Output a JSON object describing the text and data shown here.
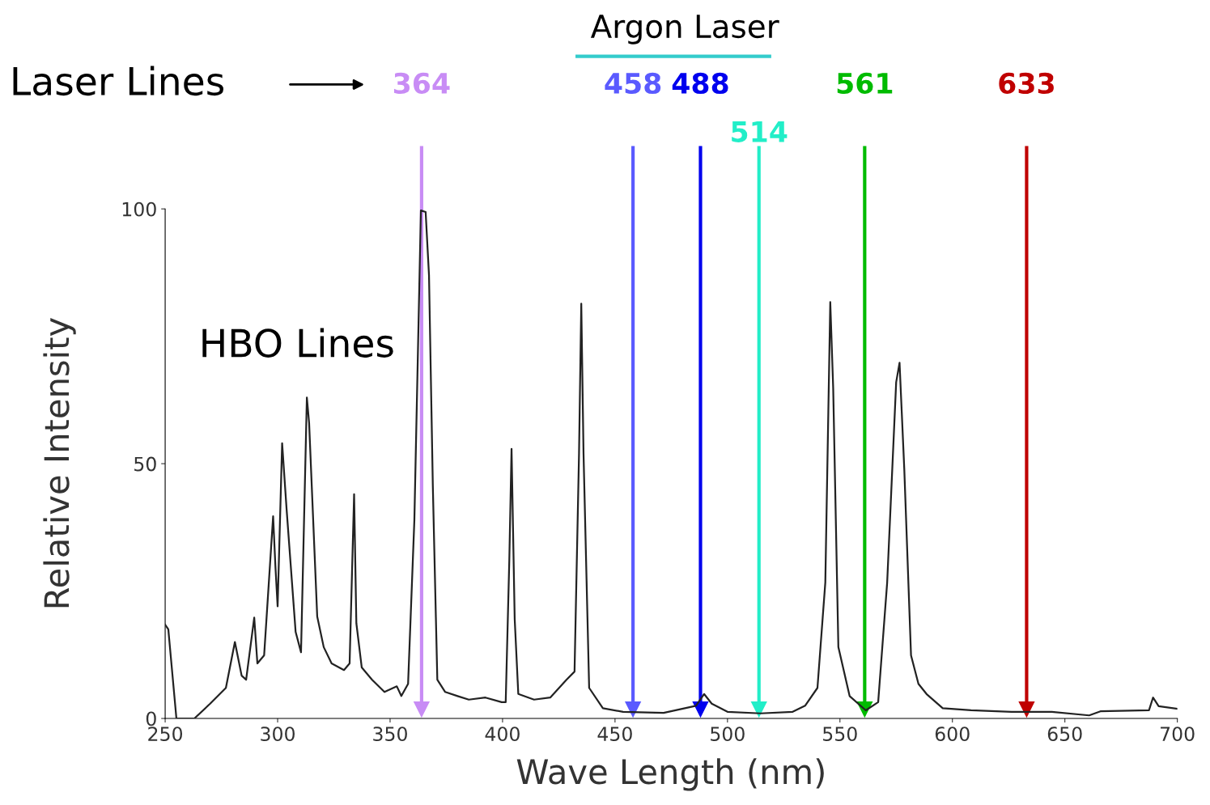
{
  "chart_data": {
    "type": "line",
    "xlabel": "Wave Length (nm)",
    "ylabel": "Relative Intensity",
    "xlim": [
      250,
      700
    ],
    "ylim": [
      0,
      100
    ],
    "xticks": [
      250,
      300,
      350,
      400,
      450,
      500,
      550,
      600,
      650,
      700
    ],
    "yticks": [
      0,
      50,
      100
    ],
    "grid": false,
    "legend": false,
    "series": [
      {
        "color": "#222222",
        "x": [
          250,
          251.4,
          255,
          263,
          270,
          277,
          281,
          284,
          286,
          289.6,
          291,
          294,
          298,
          299,
          300,
          302,
          304,
          308,
          310.4,
          313,
          314,
          317.6,
          320.5,
          324,
          329.5,
          332,
          334,
          335,
          337.4,
          342,
          347.5,
          353,
          355,
          358,
          360.8,
          363.7,
          365.8,
          367.3,
          369,
          371,
          374.5,
          380,
          385,
          392.4,
          399.6,
          401.4,
          403,
          404,
          405.4,
          407,
          414,
          421.2,
          428.4,
          432,
          434,
          435,
          436,
          438.5,
          444.6,
          453.6,
          471.6,
          486,
          489.6,
          493,
          500,
          514.7,
          529,
          534.5,
          540,
          543.5,
          545.7,
          547,
          549.3,
          554.3,
          561.5,
          567,
          571,
          575,
          576.5,
          578.6,
          581.6,
          584.9,
          588.5,
          595.7,
          608.3,
          626.3,
          644.2,
          660.8,
          665.8,
          687.4,
          689.2,
          691.7,
          700
        ],
        "values": [
          18.4,
          17.5,
          0,
          0,
          2.9,
          6,
          15,
          8.4,
          7.6,
          19.8,
          10.8,
          12.4,
          39.7,
          30,
          22,
          54,
          41,
          17,
          13,
          63,
          58,
          20,
          14,
          10.8,
          9.5,
          10.8,
          44,
          18.7,
          10,
          7.6,
          5.2,
          6.3,
          4.4,
          6.8,
          39,
          99.7,
          99.4,
          87,
          45.7,
          7.6,
          5.2,
          4.4,
          3.7,
          4.1,
          3.2,
          3.2,
          31,
          52.9,
          19.5,
          4.8,
          3.7,
          4.1,
          7.6,
          9.2,
          52,
          81.4,
          52,
          6,
          2,
          1.3,
          1.1,
          2.5,
          4.8,
          2.9,
          1.3,
          1,
          1.3,
          2.5,
          6,
          26.7,
          81.7,
          64.8,
          14,
          4.4,
          1.6,
          3.2,
          26.7,
          66,
          69.8,
          49,
          12.4,
          6.8,
          4.8,
          2,
          1.6,
          1.3,
          1.3,
          0.6,
          1.4,
          1.6,
          4.1,
          2.4,
          1.9
        ]
      }
    ],
    "ref_lines": [
      {
        "axis": "x",
        "value": 364,
        "label": "364",
        "color": "#c88cf5"
      },
      {
        "axis": "x",
        "value": 458,
        "label": "458",
        "color": "#5a5aff"
      },
      {
        "axis": "x",
        "value": 488,
        "label": "488",
        "color": "#0000ee"
      },
      {
        "axis": "x",
        "value": 514,
        "label": "514",
        "color": "#22eec8"
      },
      {
        "axis": "x",
        "value": 561,
        "label": "561",
        "color": "#00bb00"
      },
      {
        "axis": "x",
        "value": 633,
        "label": "633",
        "color": "#c00000"
      }
    ],
    "annotations": [
      "Argon Laser",
      "Laser Lines",
      "HBO Lines"
    ]
  }
}
